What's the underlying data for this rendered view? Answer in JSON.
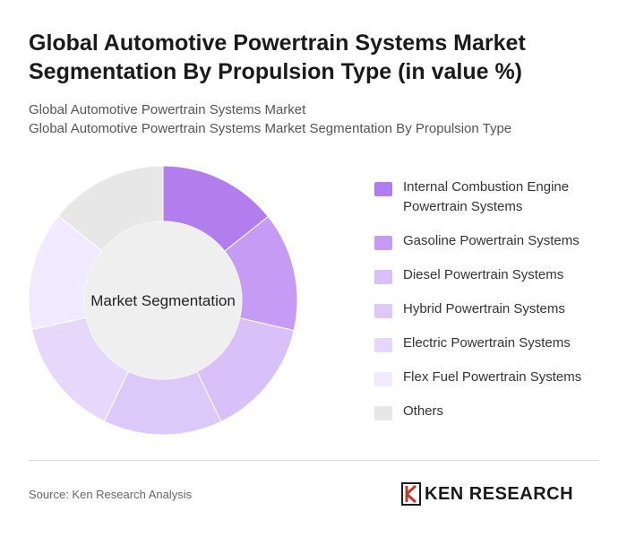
{
  "chart_data": {
    "type": "donut",
    "title": "Global Automotive Powertrain Systems Market Segmentation By Propulsion Type (in value %)",
    "subtitles": [
      "Global Automotive Powertrain Systems Market",
      "Global Automotive Powertrain Systems Market Segmentation By Propulsion Type"
    ],
    "center_label": "Market Segmentation",
    "categories": [
      "Internal Combustion Engine Powertrain Systems",
      "Gasoline Powertrain Systems",
      "Diesel Powertrain Systems",
      "Hybrid Powertrain Systems",
      "Electric Powertrain Systems",
      "Flex Fuel Powertrain Systems",
      "Others"
    ],
    "values": [
      14.3,
      14.3,
      14.3,
      14.3,
      14.3,
      14.3,
      14.2
    ],
    "colors": [
      "#b27ded",
      "#c59bf3",
      "#d8c0f8",
      "#dcc8f9",
      "#e6d7fb",
      "#f1e9fd",
      "#e7e7e7"
    ]
  },
  "source": "Source: Ken Research Analysis",
  "logo": "KEN RESEARCH"
}
